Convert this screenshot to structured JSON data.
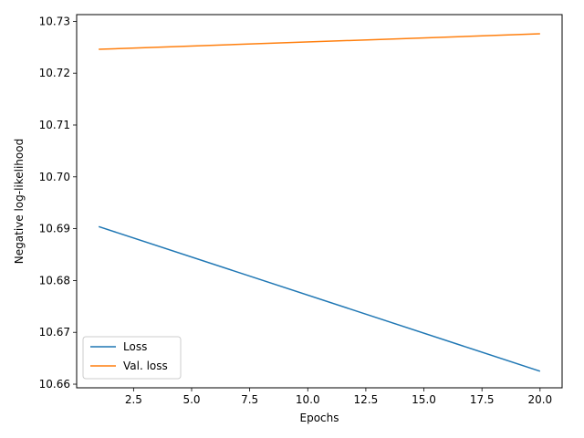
{
  "chart_data": {
    "type": "line",
    "xlabel": "Epochs",
    "ylabel": "Negative log-likelihood",
    "xlim": [
      0.05,
      20.95
    ],
    "ylim": [
      10.6593,
      10.7313
    ],
    "xticks": [
      2.5,
      5.0,
      7.5,
      10.0,
      12.5,
      15.0,
      17.5,
      20.0
    ],
    "xtick_labels": [
      "2.5",
      "5.0",
      "7.5",
      "10.0",
      "12.5",
      "15.0",
      "17.5",
      "20.0"
    ],
    "yticks": [
      10.66,
      10.67,
      10.68,
      10.69,
      10.7,
      10.71,
      10.72,
      10.73
    ],
    "ytick_labels": [
      "10.66",
      "10.67",
      "10.68",
      "10.69",
      "10.70",
      "10.71",
      "10.72",
      "10.73"
    ],
    "grid": false,
    "legend": "lower-left",
    "series": [
      {
        "name": "Loss",
        "color": "#1f77b4",
        "x": [
          1,
          20
        ],
        "y": [
          10.6904,
          10.6625
        ]
      },
      {
        "name": "Val. loss",
        "color": "#ff7f0e",
        "x": [
          1,
          20
        ],
        "y": [
          10.7246,
          10.7276
        ]
      }
    ]
  }
}
